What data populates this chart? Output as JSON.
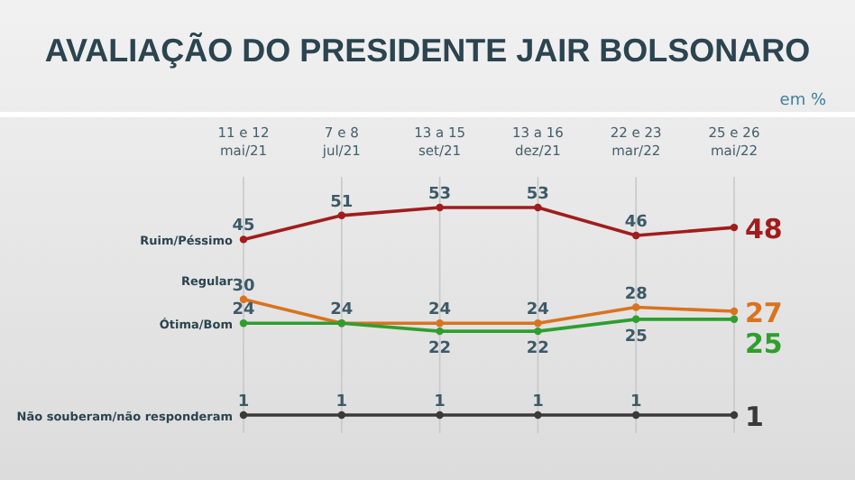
{
  "chart_data": {
    "type": "line",
    "title": "AVALIAÇÃO DO PRESIDENTE JAIR BOLSONARO",
    "subtitle": "em %",
    "categories": [
      "11 e 12 mai/21",
      "7 e 8 jul/21",
      "13 a 15 set/21",
      "13 a 16 dez/21",
      "22 e 23 mar/22",
      "25 e 26 mai/22"
    ],
    "series": [
      {
        "name": "Ruim/Péssimo",
        "color": "#a11d1d",
        "values": [
          45,
          51,
          53,
          53,
          46,
          48
        ],
        "value_labels": [
          "45",
          "51",
          "53",
          "53",
          "46",
          "48"
        ]
      },
      {
        "name": "Regular",
        "color": "#d9731f",
        "values": [
          30,
          24,
          24,
          24,
          28,
          27
        ],
        "value_labels": [
          "30",
          "24",
          "24",
          "24",
          "28",
          "27"
        ]
      },
      {
        "name": "Ótima/Bom",
        "color": "#2f9e2f",
        "values": [
          24,
          24,
          22,
          22,
          25,
          25
        ],
        "value_labels": [
          "24",
          null,
          "22",
          "22",
          "25",
          "25"
        ]
      },
      {
        "name": "Não souberam/não responderam",
        "color": "#3a3a3a",
        "values": [
          1,
          1,
          1,
          1,
          1,
          1
        ],
        "value_labels": [
          "1",
          "1",
          "1",
          "1",
          "1",
          "1"
        ]
      }
    ],
    "tick_labels": "x",
    "grid": "x",
    "marker": "circle",
    "line_style": "solid"
  }
}
